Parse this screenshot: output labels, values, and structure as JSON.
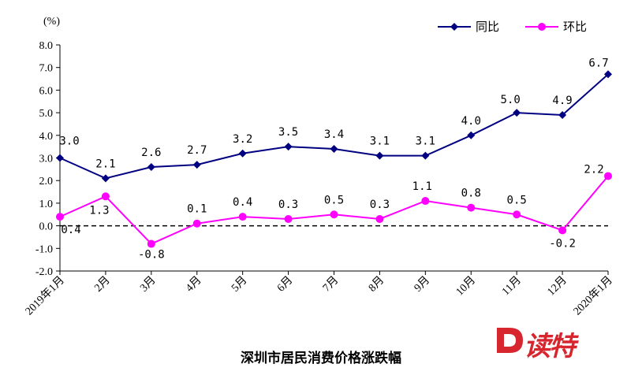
{
  "chart_data": {
    "type": "line",
    "title": "",
    "unit_label": "(%)",
    "categories": [
      "2019年1月",
      "2月",
      "3月",
      "4月",
      "5月",
      "6月",
      "7月",
      "8月",
      "9月",
      "10月",
      "11月",
      "12月",
      "2020年1月"
    ],
    "ylim": [
      -2.0,
      8.0
    ],
    "y_ticks": [
      "-2.0",
      "-1.0",
      "0.0",
      "1.0",
      "2.0",
      "3.0",
      "4.0",
      "5.0",
      "6.0",
      "7.0",
      "8.0"
    ],
    "reference_line": 0,
    "grid": false,
    "legend_position": "top-right",
    "series": [
      {
        "name": "同比",
        "color": "#000080",
        "marker": "diamond",
        "values": [
          3.0,
          2.1,
          2.6,
          2.7,
          3.2,
          3.5,
          3.4,
          3.1,
          3.1,
          4.0,
          5.0,
          4.9,
          6.7
        ],
        "labels": [
          "3.0",
          "2.1",
          "2.6",
          "2.7",
          "3.2",
          "3.5",
          "3.4",
          "3.1",
          "3.1",
          "4.0",
          "5.0",
          "4.9",
          "6.7"
        ]
      },
      {
        "name": "环比",
        "color": "#ff00ff",
        "marker": "circle",
        "values": [
          0.4,
          1.3,
          -0.8,
          0.1,
          0.4,
          0.3,
          0.5,
          0.3,
          1.1,
          0.8,
          0.5,
          -0.2,
          2.2
        ],
        "labels": [
          "0.4",
          "1.3",
          "-0.8",
          "0.1",
          "0.4",
          "0.3",
          "0.5",
          "0.3",
          "1.1",
          "0.8",
          "0.5",
          "-0.2",
          "2.2"
        ]
      }
    ]
  },
  "caption": "深圳市居民消费价格涨跌幅",
  "watermark": {
    "text": "读特",
    "icon": "d-logo-icon",
    "color": "#d8262f"
  }
}
